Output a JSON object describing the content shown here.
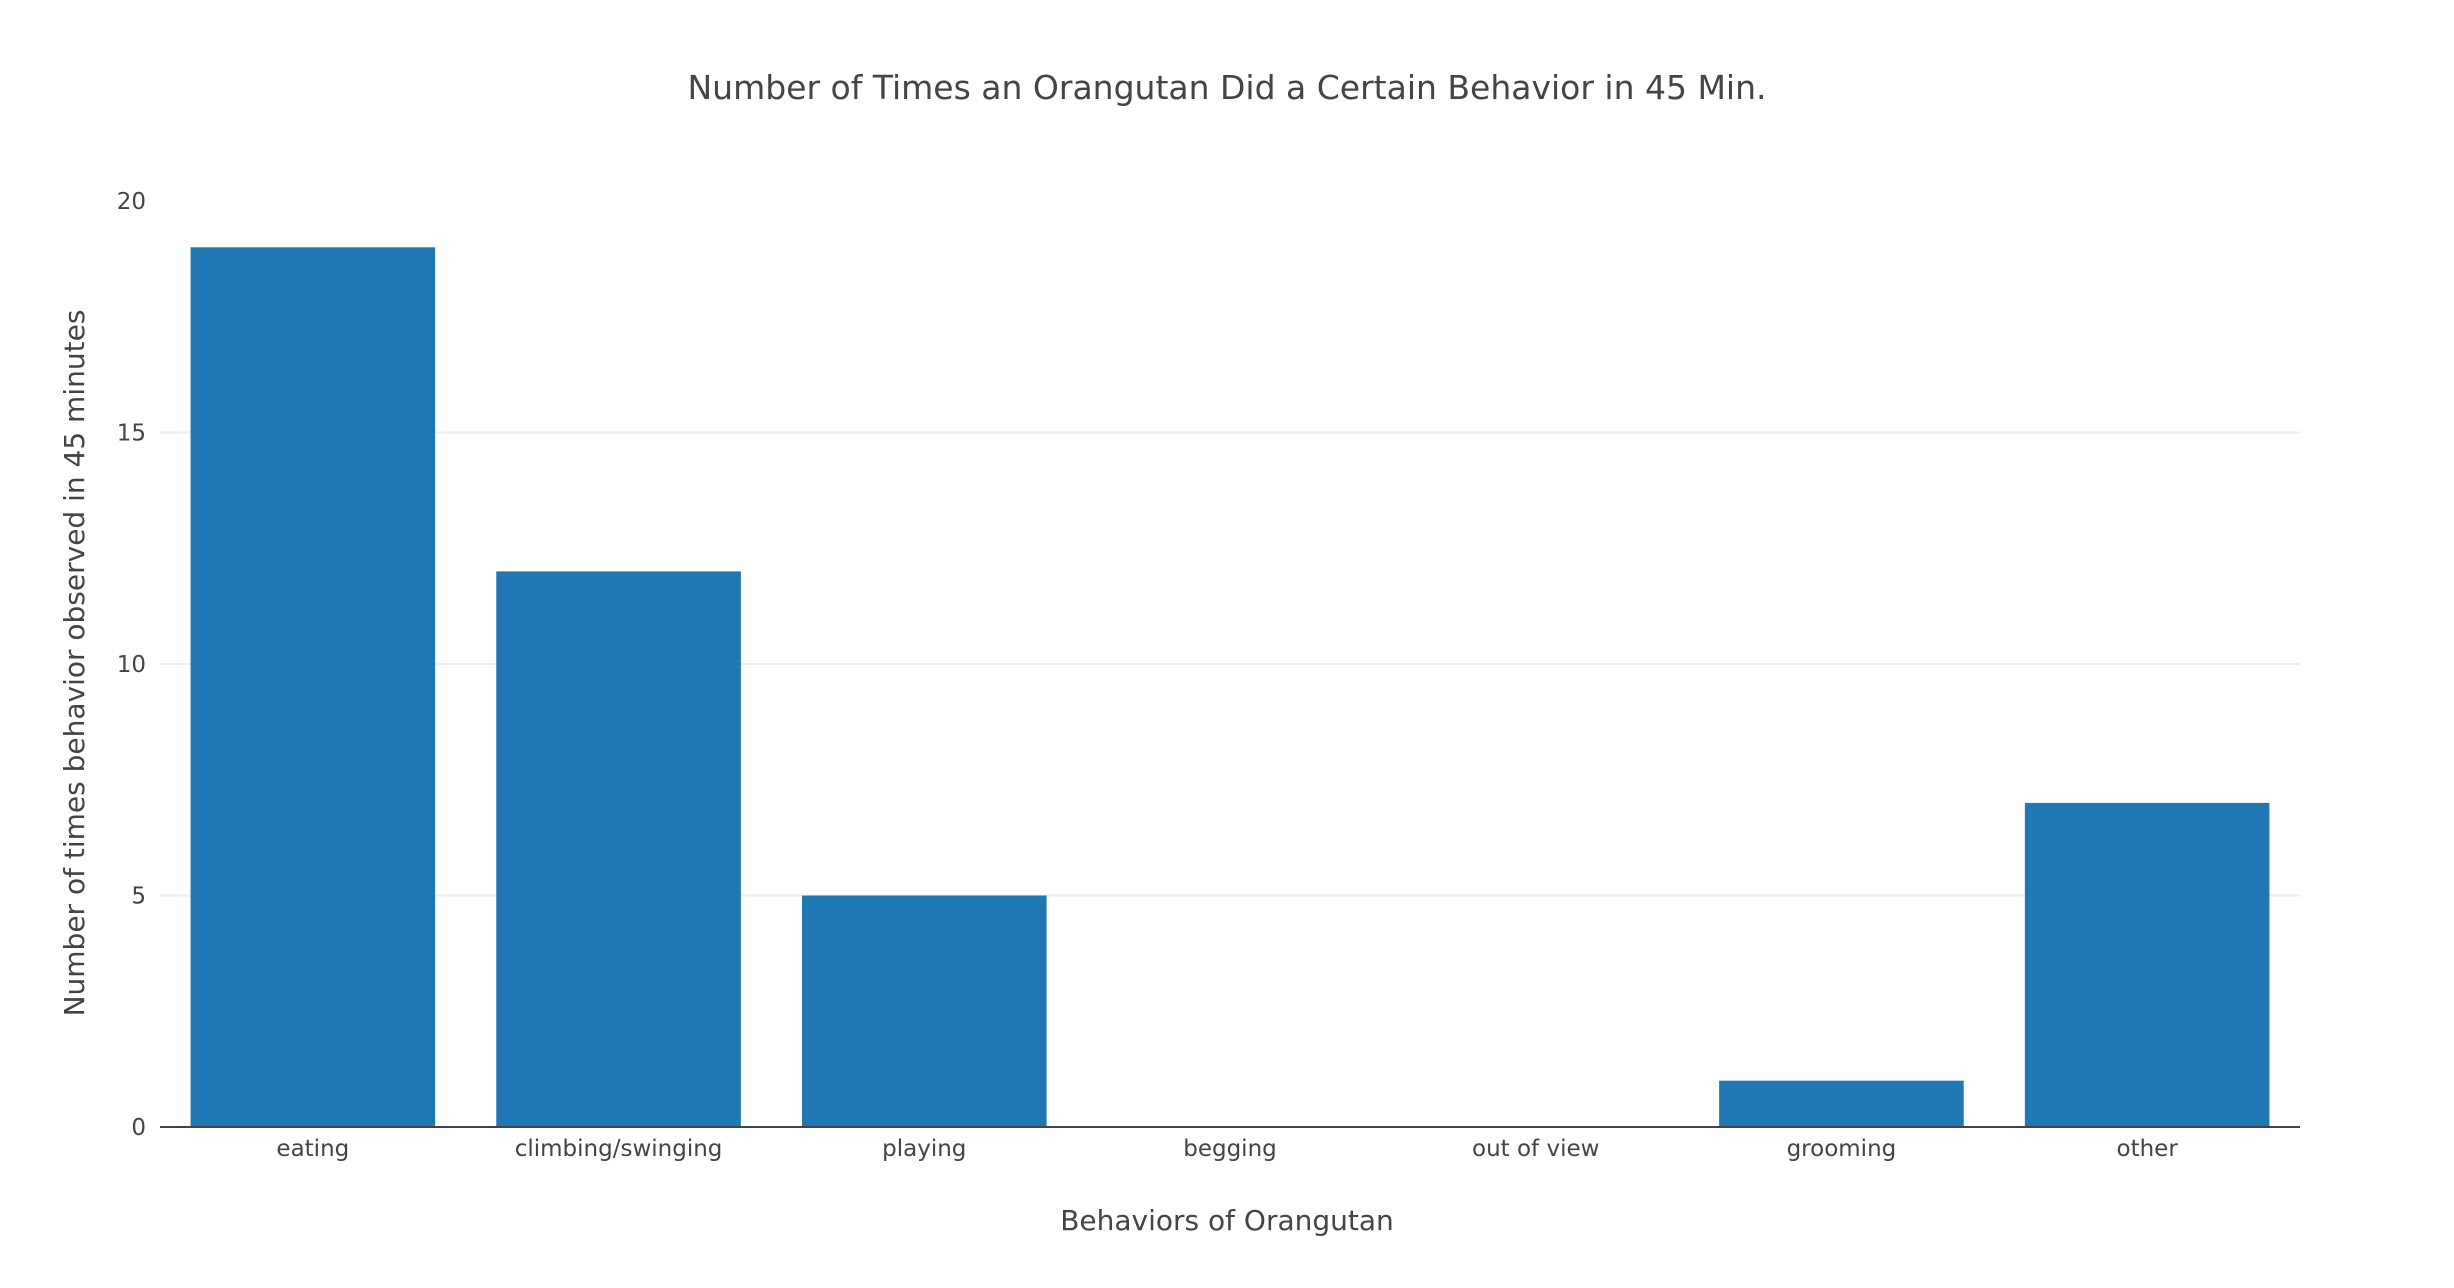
{
  "chart_data": {
    "type": "bar",
    "title": "Number of Times an Orangutan Did a Certain Behavior in 45 Min.",
    "xlabel": "Behaviors of Orangutan",
    "ylabel": "Number of times behavior observed in 45 minutes",
    "categories": [
      "eating",
      "climbing/swinging",
      "playing",
      "begging",
      "out of view",
      "grooming",
      "other"
    ],
    "values": [
      19,
      12,
      5,
      0,
      0,
      1,
      7
    ],
    "ylim": [
      0,
      20
    ],
    "yticks": [
      0,
      5,
      10,
      15,
      20
    ],
    "grid": true,
    "legend": "none",
    "bar_color": "#1f77b4"
  }
}
